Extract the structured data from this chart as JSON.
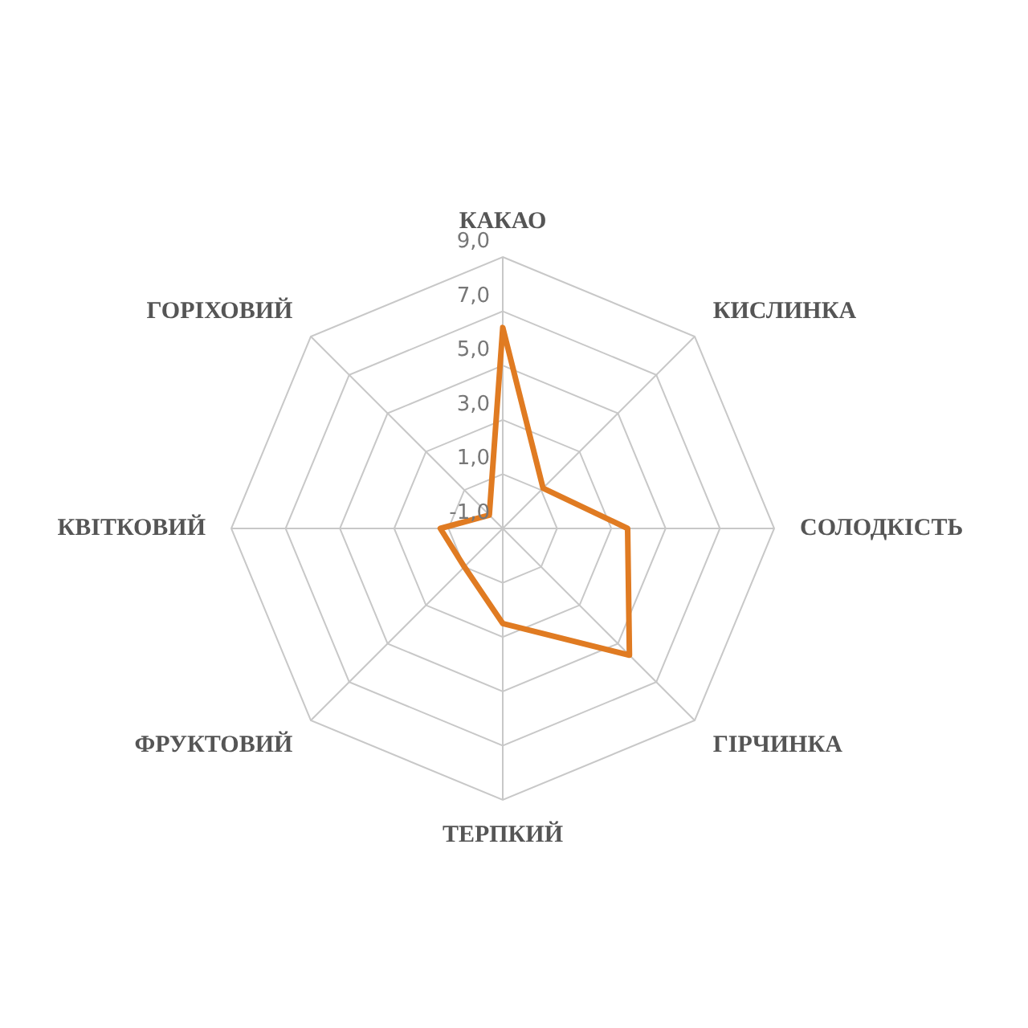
{
  "chart_data": {
    "type": "radar",
    "categories": [
      "КАКАО",
      "КИСЛИНКА",
      "СОЛОДКІСТЬ",
      "ГІРЧИНКА",
      "ТЕРПКИЙ",
      "ФРУКТОВИЙ",
      "КВІТКОВИЙ",
      "ГОРІХОВИЙ"
    ],
    "series": [
      {
        "color": "#e07b22",
        "values": [
          6.4,
          1.1,
          3.6,
          5.6,
          2.5,
          1.0,
          1.3,
          -0.3
        ]
      }
    ],
    "ylim": [
      -1,
      9
    ],
    "yticks": [
      {
        "value": -1,
        "label": "-1,0"
      },
      {
        "value": 1,
        "label": "1,0"
      },
      {
        "value": 3,
        "label": "3,0"
      },
      {
        "value": 5,
        "label": "5,0"
      },
      {
        "value": 7,
        "label": "7,0"
      },
      {
        "value": 9,
        "label": "9,0"
      }
    ],
    "grid": true,
    "legend": false,
    "marker": "none"
  }
}
